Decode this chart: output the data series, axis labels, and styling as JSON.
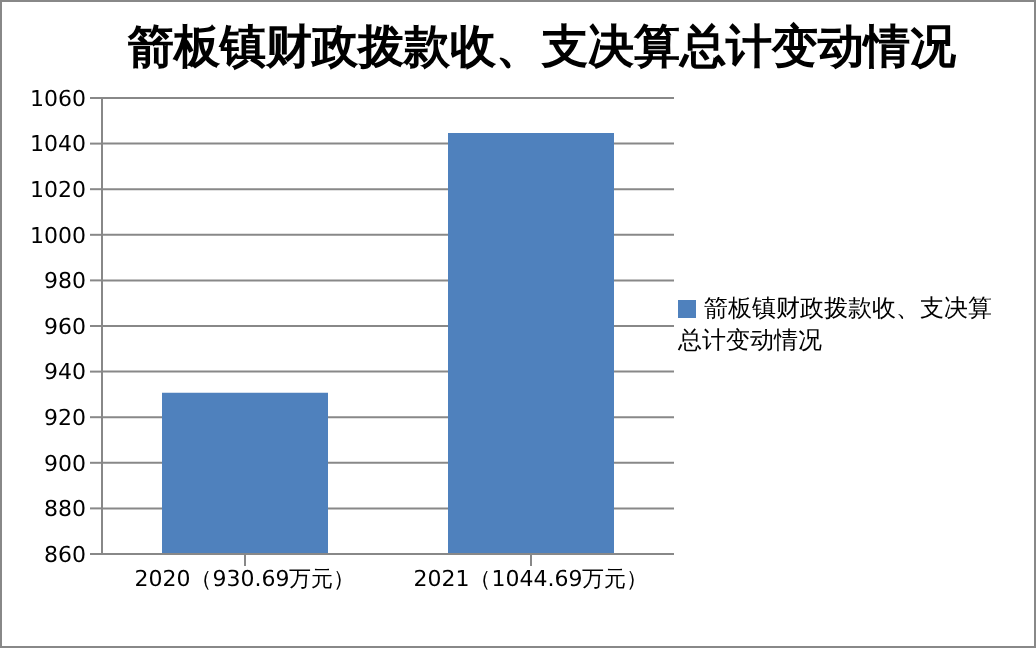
{
  "chart_data": {
    "type": "bar",
    "title": "箭板镇财政拨款收、支决算总计变动情况",
    "categories": [
      "2020（930.69万元）",
      "2021（1044.69万元）"
    ],
    "series": [
      {
        "name": "箭板镇财政拨款收、支决算总计变动情况",
        "color": "#4f81bd",
        "values": [
          930.69,
          1044.69
        ]
      }
    ],
    "ylim": [
      860,
      1060
    ],
    "yticks": [
      860,
      880,
      900,
      920,
      940,
      960,
      980,
      1000,
      1020,
      1040,
      1060
    ],
    "grid": "y",
    "legend": "right"
  }
}
